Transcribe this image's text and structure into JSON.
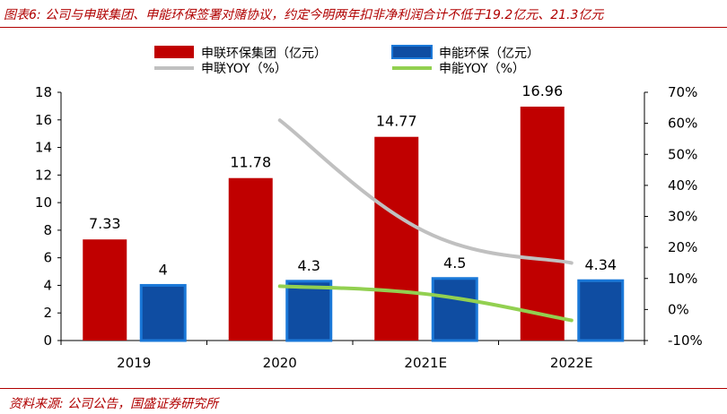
{
  "figure": {
    "title": "图表6: 公司与申联集团、申能环保签署对赌协议，约定今明两年扣非净利润合计不低于19.2亿元、21.3亿元",
    "source": "资料来源: 公司公告，国盛证券研究所"
  },
  "colors": {
    "bar_shenlian": "#c00000",
    "bar_shenneng": "#0f4da2",
    "bar_shenneng_border": "#1a78d8",
    "line_shenlian": "#c0c0c0",
    "line_shenneng": "#92d050",
    "accent": "#b00000"
  },
  "chart_data": {
    "type": "bar",
    "categories": [
      "2019",
      "2020",
      "2021E",
      "2022E"
    ],
    "series": [
      {
        "name": "申联环保集团（亿元）",
        "kind": "bar",
        "axis": "left",
        "values": [
          7.33,
          11.78,
          14.77,
          16.96
        ],
        "labels": [
          "7.33",
          "11.78",
          "14.77",
          "16.96"
        ]
      },
      {
        "name": "申能环保（亿元）",
        "kind": "bar",
        "axis": "left",
        "values": [
          4,
          4.3,
          4.5,
          4.34
        ],
        "labels": [
          "4",
          "4.3",
          "4.5",
          "4.34"
        ]
      },
      {
        "name": "申联YOY（%）",
        "kind": "line",
        "axis": "right",
        "values": [
          null,
          61,
          25,
          15
        ]
      },
      {
        "name": "申能YOY（%）",
        "kind": "line",
        "axis": "right",
        "values": [
          null,
          7.5,
          5,
          -3.5
        ]
      }
    ],
    "left_axis": {
      "ylim": [
        0,
        18
      ],
      "ticks": [
        "0",
        "2",
        "4",
        "6",
        "8",
        "10",
        "12",
        "14",
        "16",
        "18"
      ]
    },
    "right_axis": {
      "ylim": [
        -10,
        70
      ],
      "ticks": [
        "-10%",
        "0%",
        "10%",
        "20%",
        "30%",
        "40%",
        "50%",
        "60%",
        "70%"
      ]
    },
    "legend_position": "top"
  }
}
